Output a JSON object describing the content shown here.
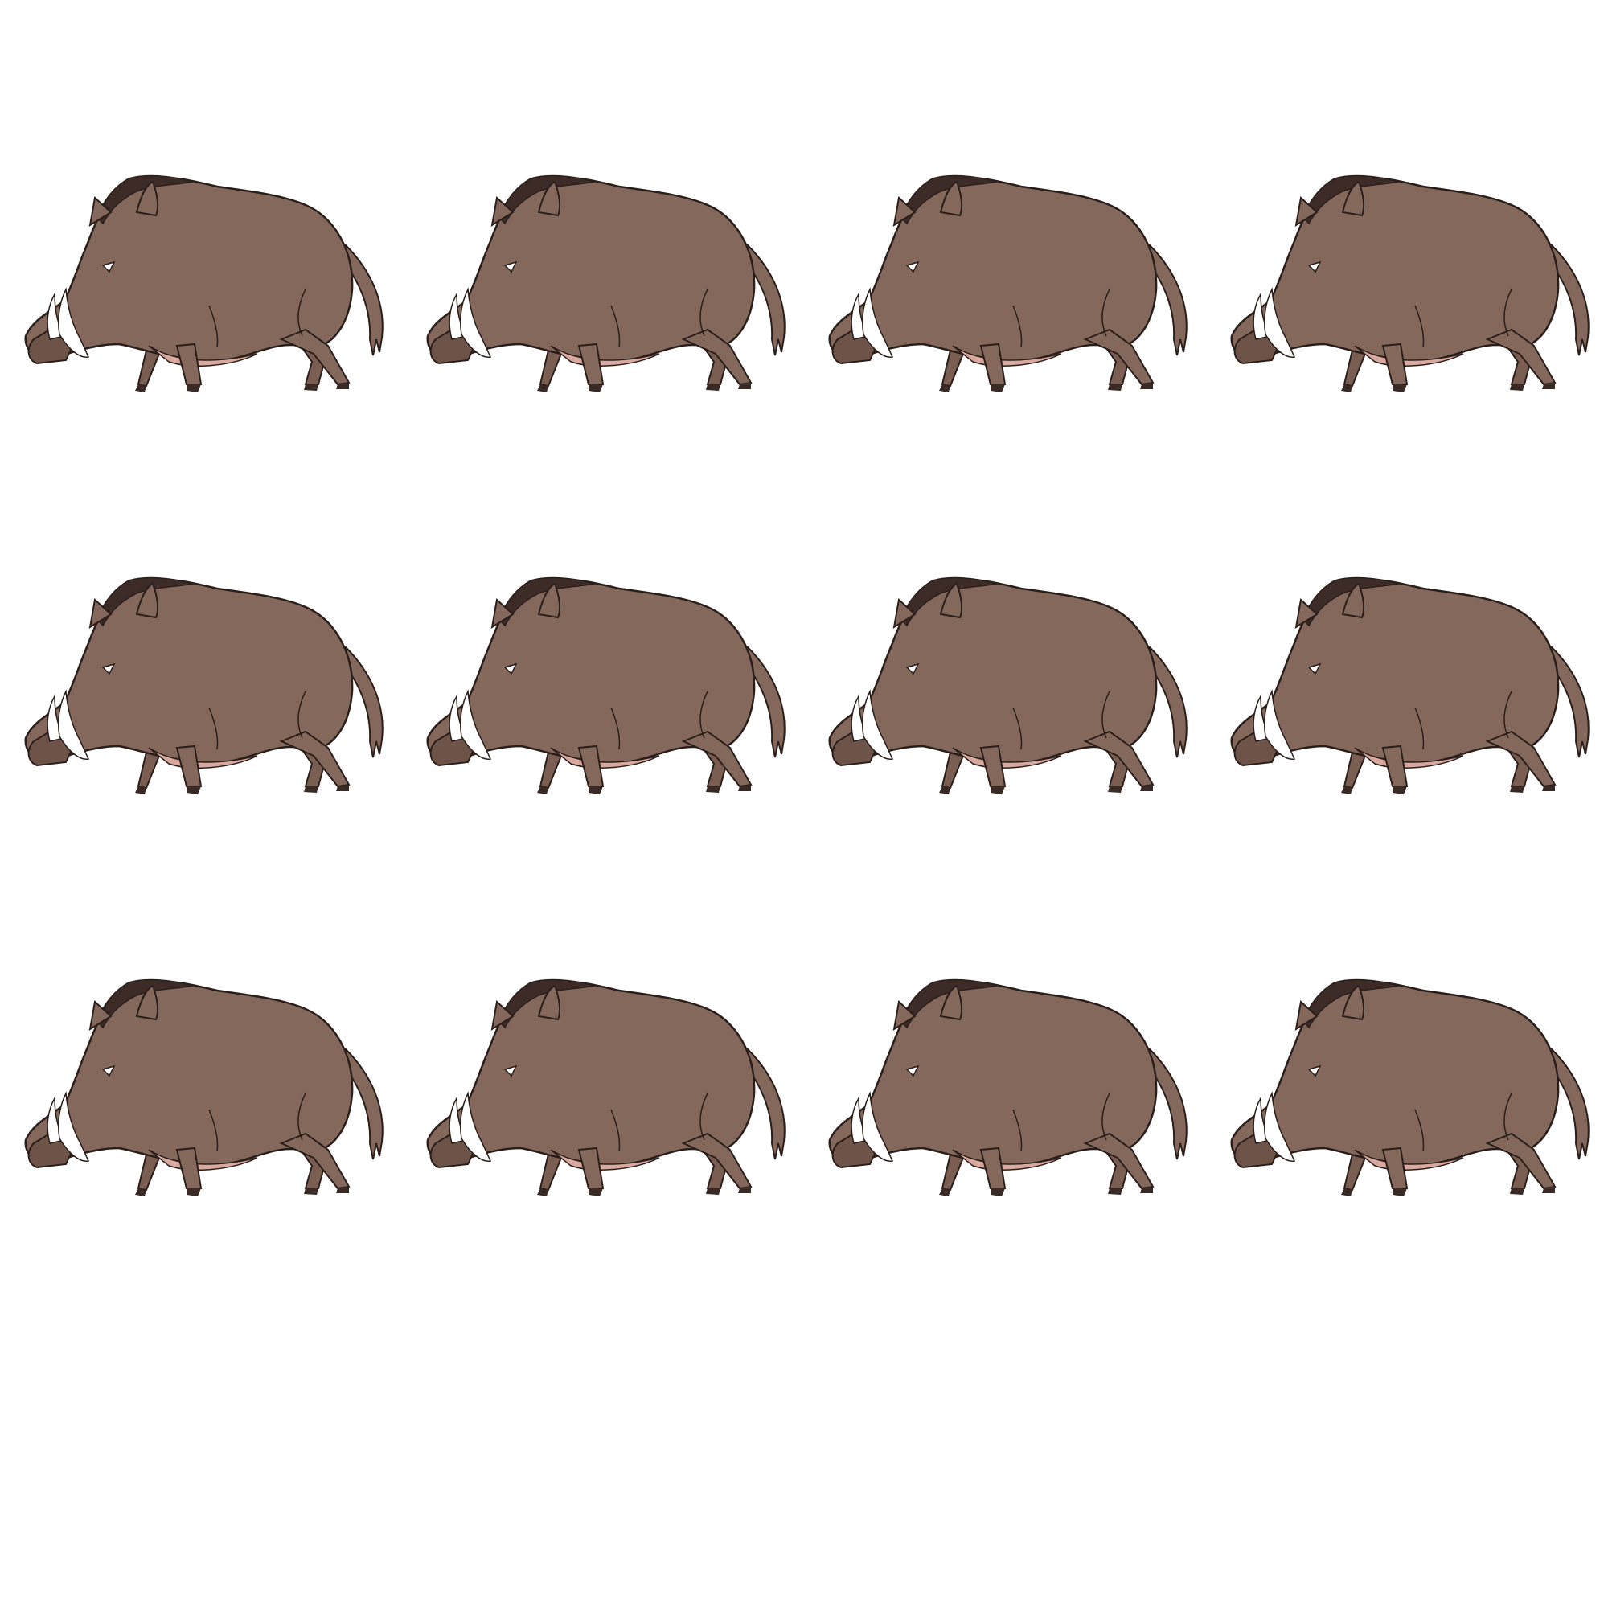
{
  "figure": {
    "subject": "wild boar",
    "count": 12,
    "rows": 3,
    "columns": 4
  },
  "colors": {
    "background": "#ffffff",
    "body": "#85685c",
    "mane": "#3d2b27",
    "belly": "#d9a9a0",
    "tusk": "#ffffff",
    "outline": "#2a1e1a",
    "hoof": "#3a2a26"
  }
}
